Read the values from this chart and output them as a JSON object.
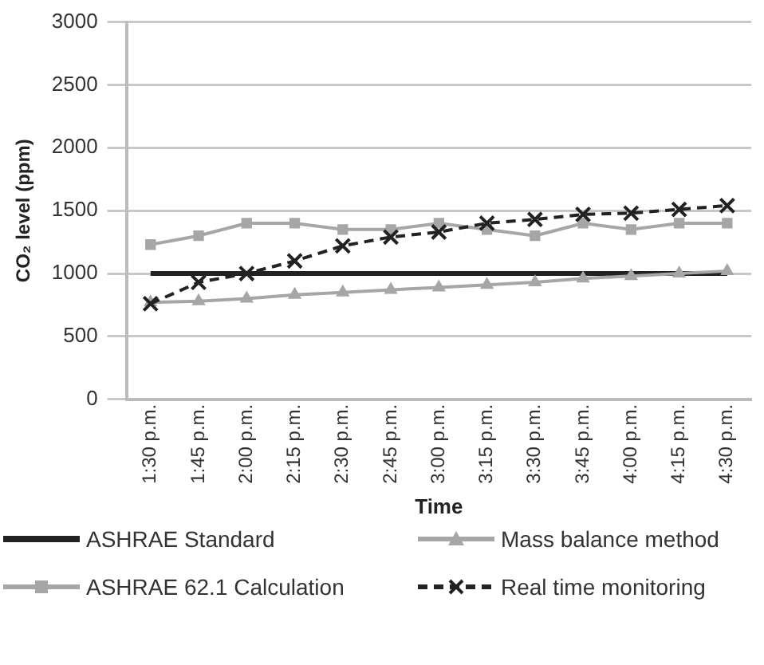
{
  "chart_data": {
    "type": "line",
    "xlabel": "Time",
    "ylabel": "CO₂ level (ppm)",
    "categories": [
      "1:30 p.m.",
      "1:45 p.m.",
      "2:00 p.m.",
      "2:15 p.m.",
      "2:30 p.m.",
      "2:45 p.m.",
      "3:00 p.m.",
      "3:15 p.m.",
      "3:30 p.m.",
      "3:45 p.m.",
      "4:00 p.m.",
      "4:15 p.m.",
      "4:30 p.m."
    ],
    "series": [
      {
        "name": "ASHRAE Standard",
        "color": "#222222",
        "marker": "none",
        "line_style": "solid",
        "values": [
          1000,
          1000,
          1000,
          1000,
          1000,
          1000,
          1000,
          1000,
          1000,
          1000,
          1000,
          1000,
          1000
        ]
      },
      {
        "name": "Mass balance method",
        "color": "#a6a6a6",
        "marker": "triangle",
        "line_style": "solid",
        "values": [
          770,
          780,
          800,
          830,
          850,
          870,
          890,
          910,
          930,
          960,
          980,
          1000,
          1020
        ]
      },
      {
        "name": "ASHRAE 62.1 Calculation",
        "color": "#a6a6a6",
        "marker": "square",
        "line_style": "solid",
        "values": [
          1230,
          1300,
          1400,
          1400,
          1350,
          1350,
          1400,
          1350,
          1300,
          1400,
          1350,
          1400,
          1400
        ]
      },
      {
        "name": "Real time monitoring",
        "color": "#222222",
        "marker": "cross",
        "line_style": "dashed",
        "values": [
          760,
          930,
          1000,
          1100,
          1220,
          1290,
          1330,
          1400,
          1430,
          1470,
          1480,
          1510,
          1540
        ]
      }
    ],
    "ylim": [
      0,
      3000
    ],
    "yticks": [
      0,
      500,
      1000,
      1500,
      2000,
      2500,
      3000
    ],
    "grid": "y",
    "legend": "bottom"
  }
}
